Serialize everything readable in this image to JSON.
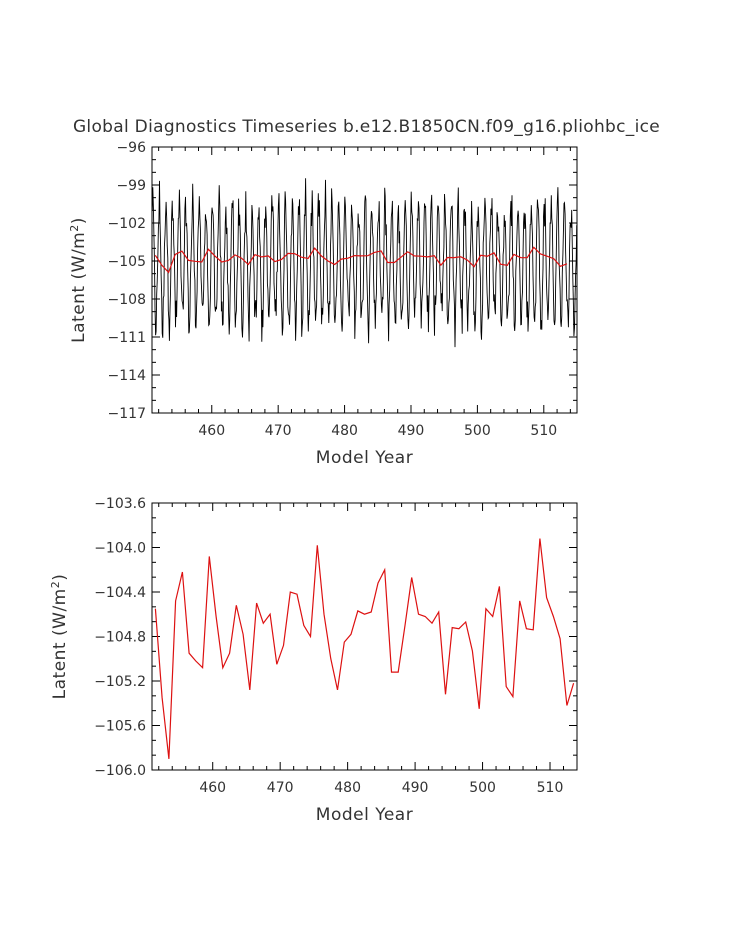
{
  "title": "Global Diagnostics Timeseries b.e12.B1850CN.f09_g16.pliohbc_ice",
  "chart_data": [
    {
      "type": "line",
      "xlabel": "Model Year",
      "ylabel_main": "Latent (W/m",
      "ylabel_sup": "2",
      "ylabel_close": ")",
      "xlim": [
        451,
        515
      ],
      "ylim": [
        -117,
        -96
      ],
      "xticks": [
        460,
        470,
        480,
        490,
        500,
        510
      ],
      "xtick_labels": [
        "460",
        "470",
        "480",
        "490",
        "500",
        "510"
      ],
      "yticks": [
        -96,
        -99,
        -102,
        -105,
        -108,
        -111,
        -114,
        -117
      ],
      "ytick_labels": [
        "−96",
        "−99",
        "−102",
        "−105",
        "−108",
        "−111",
        "−114",
        "−117"
      ],
      "series": [
        {
          "color": "#000000",
          "note": "monthly",
          "x_start": 451.04,
          "x_step": 0.0833333,
          "seasonal_mean": -105.2,
          "seasonal_amp": 4.6
        },
        {
          "color": "#dd1111",
          "note": "annual",
          "x_start": 451.5,
          "x_step": 1,
          "values": [
            -104.55,
            -105.35,
            -105.9,
            -104.48,
            -104.22,
            -104.95,
            -105.02,
            -105.08,
            -104.08,
            -104.62,
            -105.08,
            -104.95,
            -104.52,
            -104.78,
            -105.28,
            -104.5,
            -104.68,
            -104.6,
            -105.05,
            -104.88,
            -104.4,
            -104.42,
            -104.7,
            -104.8,
            -103.98,
            -104.6,
            -105.0,
            -105.28,
            -104.85,
            -104.78,
            -104.57,
            -104.6,
            -104.58,
            -104.32,
            -104.2,
            -105.12,
            -105.12,
            -104.7,
            -104.27,
            -104.6,
            -104.62,
            -104.68,
            -104.58,
            -105.32,
            -104.72,
            -104.73,
            -104.67,
            -104.93,
            -105.45,
            -104.55,
            -104.62,
            -104.35,
            -105.25,
            -105.34,
            -104.48,
            -104.73,
            -104.74,
            -103.92,
            -104.45,
            -104.62,
            -104.82,
            -105.42,
            -105.22
          ]
        }
      ]
    },
    {
      "type": "line",
      "xlabel": "Model Year",
      "ylabel_main": "Latent (W/m",
      "ylabel_sup": "2",
      "ylabel_close": ")",
      "xlim": [
        451,
        514
      ],
      "ylim": [
        -106.0,
        -103.6
      ],
      "xticks": [
        460,
        470,
        480,
        490,
        500,
        510
      ],
      "xtick_labels": [
        "460",
        "470",
        "480",
        "490",
        "500",
        "510"
      ],
      "yticks": [
        -103.6,
        -104.0,
        -104.4,
        -104.8,
        -105.2,
        -105.6,
        -106.0
      ],
      "ytick_labels": [
        "−103.6",
        "−104.0",
        "−104.4",
        "−104.8",
        "−105.2",
        "−105.6",
        "−106.0"
      ],
      "series": [
        {
          "color": "#dd1111",
          "x_start": 451.5,
          "x_step": 1,
          "values": [
            -104.55,
            -105.35,
            -105.9,
            -104.48,
            -104.22,
            -104.95,
            -105.02,
            -105.08,
            -104.08,
            -104.62,
            -105.08,
            -104.95,
            -104.52,
            -104.78,
            -105.28,
            -104.5,
            -104.68,
            -104.6,
            -105.05,
            -104.88,
            -104.4,
            -104.42,
            -104.7,
            -104.8,
            -103.98,
            -104.6,
            -105.0,
            -105.28,
            -104.85,
            -104.78,
            -104.57,
            -104.6,
            -104.58,
            -104.32,
            -104.2,
            -105.12,
            -105.12,
            -104.7,
            -104.27,
            -104.6,
            -104.62,
            -104.68,
            -104.58,
            -105.32,
            -104.72,
            -104.73,
            -104.67,
            -104.93,
            -105.45,
            -104.55,
            -104.62,
            -104.35,
            -105.25,
            -105.34,
            -104.48,
            -104.73,
            -104.74,
            -103.92,
            -104.45,
            -104.62,
            -104.82,
            -105.42,
            -105.22
          ]
        }
      ]
    }
  ]
}
